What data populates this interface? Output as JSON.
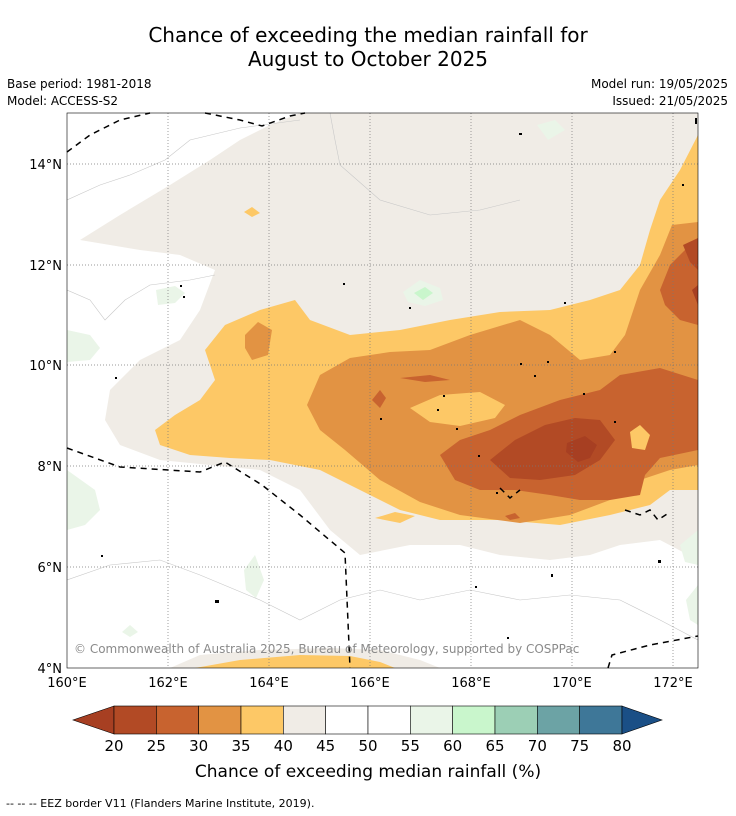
{
  "title_line1": "Chance of exceeding the median rainfall for",
  "title_line2": "August to October 2025",
  "base_period": "Base period: 1981-2018",
  "model": "Model: ACCESS-S2",
  "model_run": "Model run: 19/05/2025",
  "issued": "Issued: 21/05/2025",
  "copyright": "© Commonwealth of Australia 2025, Bureau of Meteorology, supported by COSPPac",
  "lat_labels": [
    "14°N",
    "12°N",
    "10°N",
    "8°N",
    "6°N",
    "4°N"
  ],
  "lon_labels": [
    "160°E",
    "162°E",
    "164°E",
    "166°E",
    "168°E",
    "170°E",
    "172°E"
  ],
  "colorbar": {
    "ticks": [
      "20",
      "25",
      "30",
      "35",
      "40",
      "45",
      "50",
      "55",
      "60",
      "65",
      "70",
      "75",
      "80"
    ],
    "colors": [
      "#a73f22",
      "#b24a25",
      "#c8632f",
      "#e29343",
      "#fdc866",
      "#f0ece6",
      "#ffffff",
      "#ffffff",
      "#eaf5e8",
      "#c9f6cc",
      "#9ccfb5",
      "#6ca3a5",
      "#3e7798",
      "#1a4f86"
    ],
    "label": "Chance of exceeding median rainfall (%)"
  },
  "legend_footer": "--  --  -- EEZ border V11 (Flanders Marine Institute, 2019)."
}
